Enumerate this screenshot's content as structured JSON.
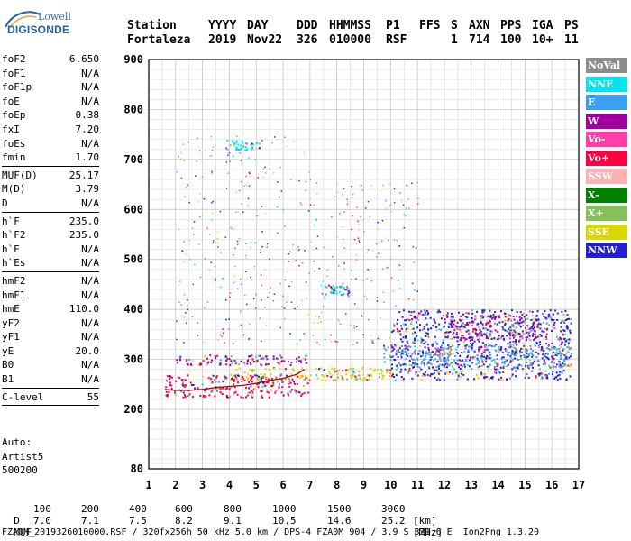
{
  "logo": {
    "line1": "Lowell",
    "line2": "DIGISONDE"
  },
  "header": {
    "row1": [
      "Station",
      "YYYY",
      "DAY",
      "DDD",
      "HHMMSS",
      "P1",
      "FFS",
      "S",
      "AXN",
      "PPS",
      "IGA",
      "PS"
    ],
    "row2": [
      "Fortaleza",
      "2019",
      "Nov22",
      "326",
      "010000",
      "RSF",
      "1",
      "714",
      "100",
      "10+",
      "11"
    ]
  },
  "params": {
    "group1": [
      {
        "label": "foF2",
        "value": "6.650"
      },
      {
        "label": "foF1",
        "value": "N/A"
      },
      {
        "label": "foF1p",
        "value": "N/A"
      },
      {
        "label": "foE",
        "value": "N/A"
      },
      {
        "label": "foEp",
        "value": "0.38"
      },
      {
        "label": "fxI",
        "value": "7.20"
      },
      {
        "label": "foEs",
        "value": "N/A"
      },
      {
        "label": "fmin",
        "value": "1.70"
      }
    ],
    "group2": [
      {
        "label": "MUF(D)",
        "value": "25.17"
      },
      {
        "label": "M(D)",
        "value": "3.79"
      },
      {
        "label": "D",
        "value": "N/A"
      }
    ],
    "group3": [
      {
        "label": "h`F",
        "value": "235.0"
      },
      {
        "label": "h`F2",
        "value": "235.0"
      },
      {
        "label": "h`E",
        "value": "N/A"
      },
      {
        "label": "h`Es",
        "value": "N/A"
      }
    ],
    "group4": [
      {
        "label": "hmF2",
        "value": "N/A"
      },
      {
        "label": "hmF1",
        "value": "N/A"
      },
      {
        "label": "hmE",
        "value": "110.0"
      },
      {
        "label": "yF2",
        "value": "N/A"
      },
      {
        "label": "yF1",
        "value": "N/A"
      },
      {
        "label": "yE",
        "value": "20.0"
      },
      {
        "label": "B0",
        "value": "N/A"
      },
      {
        "label": "B1",
        "value": "N/A"
      }
    ],
    "group5": [
      {
        "label": "C-level",
        "value": "55"
      }
    ]
  },
  "auto": {
    "line1": "Auto:",
    "line2": "Artist5",
    "line3": "500200"
  },
  "legend": [
    {
      "label": "NoVal",
      "bg": "#8c8c8c",
      "fg": "#ffffff"
    },
    {
      "label": "NNE",
      "bg": "#00e5ee",
      "fg": "#ffffff"
    },
    {
      "label": "E",
      "bg": "#3aa0f0",
      "fg": "#ffffff"
    },
    {
      "label": "W",
      "bg": "#a000a0",
      "fg": "#ffffff"
    },
    {
      "label": "Vo-",
      "bg": "#ff3ea8",
      "fg": "#ffffff"
    },
    {
      "label": "Vo+",
      "bg": "#ff0040",
      "fg": "#ffffff"
    },
    {
      "label": "SSW",
      "bg": "#ffb0b0",
      "fg": "#ffffff"
    },
    {
      "label": "X-",
      "bg": "#008000",
      "fg": "#ffffff"
    },
    {
      "label": "X+",
      "bg": "#86c05a",
      "fg": "#ffffff"
    },
    {
      "label": "SSE",
      "bg": "#d8d800",
      "fg": "#ffffff"
    },
    {
      "label": "NNW",
      "bg": "#2020d0",
      "fg": "#ffffff"
    }
  ],
  "chart_data": {
    "type": "scatter",
    "x_ticks": [
      1,
      2,
      3,
      4,
      5,
      6,
      7,
      8,
      9,
      10,
      11,
      12,
      13,
      14,
      15,
      16,
      17
    ],
    "y_ticks": [
      80,
      200,
      300,
      400,
      500,
      600,
      700,
      800,
      900
    ],
    "xlim": [
      1,
      17
    ],
    "ylim": [
      80,
      900
    ],
    "xlabel": "",
    "ylabel": "",
    "grid": true,
    "trace_line": {
      "x": [
        1.6,
        2.0,
        2.5,
        3.0,
        3.5,
        4.0,
        4.5,
        5.0,
        5.5,
        6.0,
        6.5,
        6.8
      ],
      "y": [
        240,
        238,
        238,
        240,
        244,
        246,
        248,
        252,
        258,
        262,
        270,
        280
      ]
    },
    "echo_bands": [
      {
        "direction": "Vo+",
        "x_range": [
          1.6,
          7.0
        ],
        "y_range": [
          225,
          270
        ]
      },
      {
        "direction": "W",
        "x_range": [
          2.0,
          7.0
        ],
        "y_range": [
          290,
          310
        ]
      },
      {
        "direction": "SSE",
        "x_range": [
          4.0,
          10.0
        ],
        "y_range": [
          260,
          285
        ]
      },
      {
        "direction": "NNW",
        "x_range": [
          10.0,
          16.7
        ],
        "y_range": [
          260,
          400
        ]
      },
      {
        "direction": "E",
        "x_range": [
          9.7,
          16.7
        ],
        "y_range": [
          285,
          330
        ]
      },
      {
        "direction": "W",
        "x_range": [
          12.2,
          15.5
        ],
        "y_range": [
          340,
          390
        ]
      },
      {
        "direction": "NNE",
        "x_range": [
          7.5,
          8.5
        ],
        "y_range": [
          430,
          450
        ]
      },
      {
        "direction": "NNE",
        "x_range": [
          3.8,
          5.2
        ],
        "y_range": [
          720,
          740
        ]
      }
    ]
  },
  "footer": {
    "d_label": "D",
    "d_values": [
      "100",
      "200",
      "400",
      "600",
      "800",
      "1000",
      "1500",
      "3000"
    ],
    "d_unit": "[km]",
    "muf_label": "MUF",
    "muf_values": [
      "7.0",
      "7.1",
      "7.5",
      "8.2",
      "9.1",
      "10.5",
      "14.6",
      "25.2"
    ],
    "muf_unit": "[MHz]",
    "info": "FZA0M_2019326010000.RSF / 320fx256h 50 kHz 5.0 km / DPS-4 FZA0M 904 / 3.9 S 321.6 E  Ion2Png 1.3.20"
  }
}
